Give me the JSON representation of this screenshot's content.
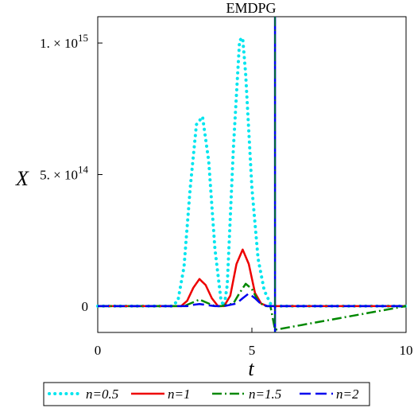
{
  "chart_data": {
    "type": "line",
    "title": "EMDPG",
    "xlabel": "t",
    "ylabel": "X",
    "xlim": [
      0,
      10
    ],
    "ylim": [
      -100000000000000.0,
      1100000000000000.0
    ],
    "xticks": [
      0,
      5,
      10
    ],
    "xtick_labels": [
      "0",
      "5",
      "10"
    ],
    "yticks": [
      0,
      500000000000000.0,
      1000000000000000.0
    ],
    "ytick_labels": [
      {
        "mantissa": "0",
        "exp": ""
      },
      {
        "mantissa": "5. × 10",
        "exp": "14"
      },
      {
        "mantissa": "1. × 10",
        "exp": "15"
      }
    ],
    "grid": false,
    "legend_position": "bottom",
    "vertical_line_x": 5.75,
    "series": [
      {
        "name": "n=0.5",
        "color": "#00e5ee",
        "style": "dotted",
        "x": [
          0,
          2.4,
          2.6,
          2.8,
          3.0,
          3.2,
          3.4,
          3.6,
          3.8,
          4.0,
          4.1,
          4.2,
          4.4,
          4.6,
          4.7,
          4.8,
          5.0,
          5.2,
          5.4,
          5.6,
          5.75,
          10
        ],
        "y": [
          0,
          0,
          20000000000000.0,
          150000000000000.0,
          450000000000000.0,
          690000000000000.0,
          720000000000000.0,
          550000000000000.0,
          220000000000000.0,
          20000000000000.0,
          0,
          80000000000000.0,
          600000000000000.0,
          1010000000000000.0,
          1020000000000000.0,
          880000000000000.0,
          450000000000000.0,
          180000000000000.0,
          60000000000000.0,
          10000000000000.0,
          0,
          0
        ]
      },
      {
        "name": "n=1",
        "color": "#ee0000",
        "style": "solid",
        "x": [
          0,
          2.7,
          2.9,
          3.1,
          3.3,
          3.5,
          3.7,
          3.9,
          4.1,
          4.3,
          4.5,
          4.7,
          4.9,
          5.1,
          5.3,
          5.5,
          5.75,
          10
        ],
        "y": [
          0,
          0,
          20000000000000.0,
          70000000000000.0,
          103000000000000.0,
          80000000000000.0,
          30000000000000.0,
          0,
          0,
          40000000000000.0,
          160000000000000.0,
          215000000000000.0,
          160000000000000.0,
          50000000000000.0,
          10000000000000.0,
          0,
          0,
          0
        ]
      },
      {
        "name": "n=1.5",
        "color": "#008800",
        "style": "dashdot",
        "x": [
          0,
          2.8,
          3.1,
          3.3,
          3.5,
          3.8,
          4.0,
          4.4,
          4.6,
          4.8,
          5.0,
          5.2,
          5.4,
          5.6,
          5.75,
          10
        ],
        "y": [
          0,
          0,
          15000000000000.0,
          25000000000000.0,
          15000000000000.0,
          0,
          0,
          10000000000000.0,
          50000000000000.0,
          85000000000000.0,
          65000000000000.0,
          20000000000000.0,
          0,
          0,
          -90000000000000.0,
          0
        ]
      },
      {
        "name": "n=2",
        "color": "#0000ee",
        "style": "dashed",
        "x": [
          0,
          2.9,
          3.1,
          3.3,
          3.5,
          3.8,
          4.1,
          4.5,
          4.7,
          4.9,
          5.1,
          5.3,
          5.5,
          5.75,
          10
        ],
        "y": [
          0,
          0,
          5000000000000.0,
          8000000000000.0,
          5000000000000.0,
          0,
          0,
          10000000000000.0,
          30000000000000.0,
          48000000000000.0,
          30000000000000.0,
          8000000000000.0,
          0,
          0,
          0
        ]
      }
    ]
  }
}
